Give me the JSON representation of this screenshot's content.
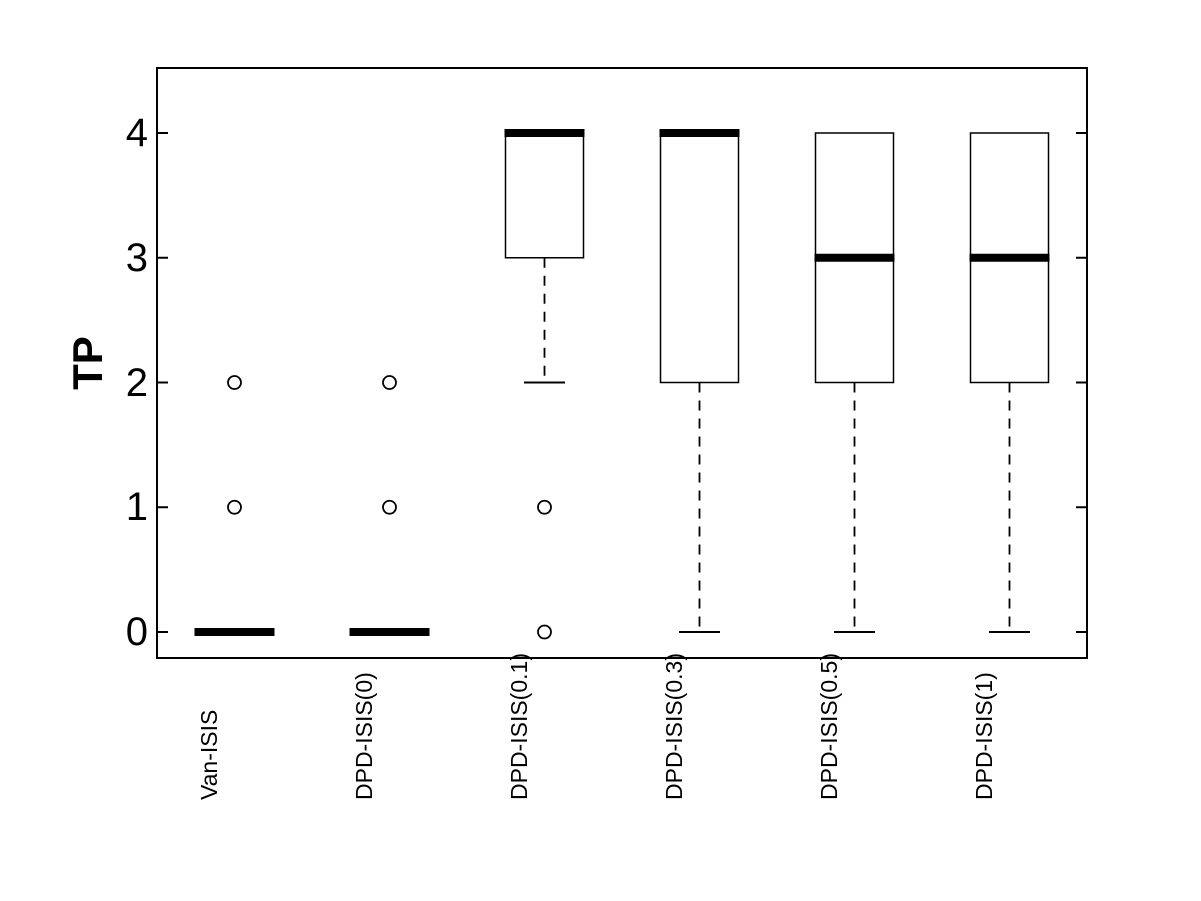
{
  "figure": {
    "background_color": "#ffffff",
    "stroke_color": "#000000"
  },
  "chart_data": {
    "type": "boxplot",
    "title": "",
    "xlabel": "",
    "ylabel": "TP",
    "categories": [
      "Van-ISIS",
      "DPD-ISIS(0)",
      "DPD-ISIS(0.1)",
      "DPD-ISIS(0.3)",
      "DPD-ISIS(0.5)",
      "DPD-ISIS(1)"
    ],
    "yticks": [
      0,
      1,
      2,
      3,
      4
    ],
    "ylim": [
      -0.21,
      4.52
    ],
    "grid": false,
    "legend": "none",
    "boxes": [
      {
        "category": "Van-ISIS",
        "whisker_low": 0,
        "q1": 0,
        "median": 0,
        "q3": 0,
        "whisker_high": 0,
        "outliers": [
          1,
          2
        ]
      },
      {
        "category": "DPD-ISIS(0)",
        "whisker_low": 0,
        "q1": 0,
        "median": 0,
        "q3": 0,
        "whisker_high": 0,
        "outliers": [
          1,
          2
        ]
      },
      {
        "category": "DPD-ISIS(0.1)",
        "whisker_low": 2,
        "q1": 3,
        "median": 4,
        "q3": 4,
        "whisker_high": 4,
        "outliers": [
          0,
          1
        ]
      },
      {
        "category": "DPD-ISIS(0.3)",
        "whisker_low": 0,
        "q1": 2,
        "median": 4,
        "q3": 4,
        "whisker_high": 4,
        "outliers": []
      },
      {
        "category": "DPD-ISIS(0.5)",
        "whisker_low": 0,
        "q1": 2,
        "median": 3,
        "q3": 4,
        "whisker_high": 4,
        "outliers": []
      },
      {
        "category": "DPD-ISIS(1)",
        "whisker_low": 0,
        "q1": 2,
        "median": 3,
        "q3": 4,
        "whisker_high": 4,
        "outliers": []
      }
    ],
    "colors": {
      "box_stroke": "#000000",
      "median": "#000000",
      "whisker": "#000000",
      "outlier": "#000000",
      "background": "#ffffff"
    }
  }
}
